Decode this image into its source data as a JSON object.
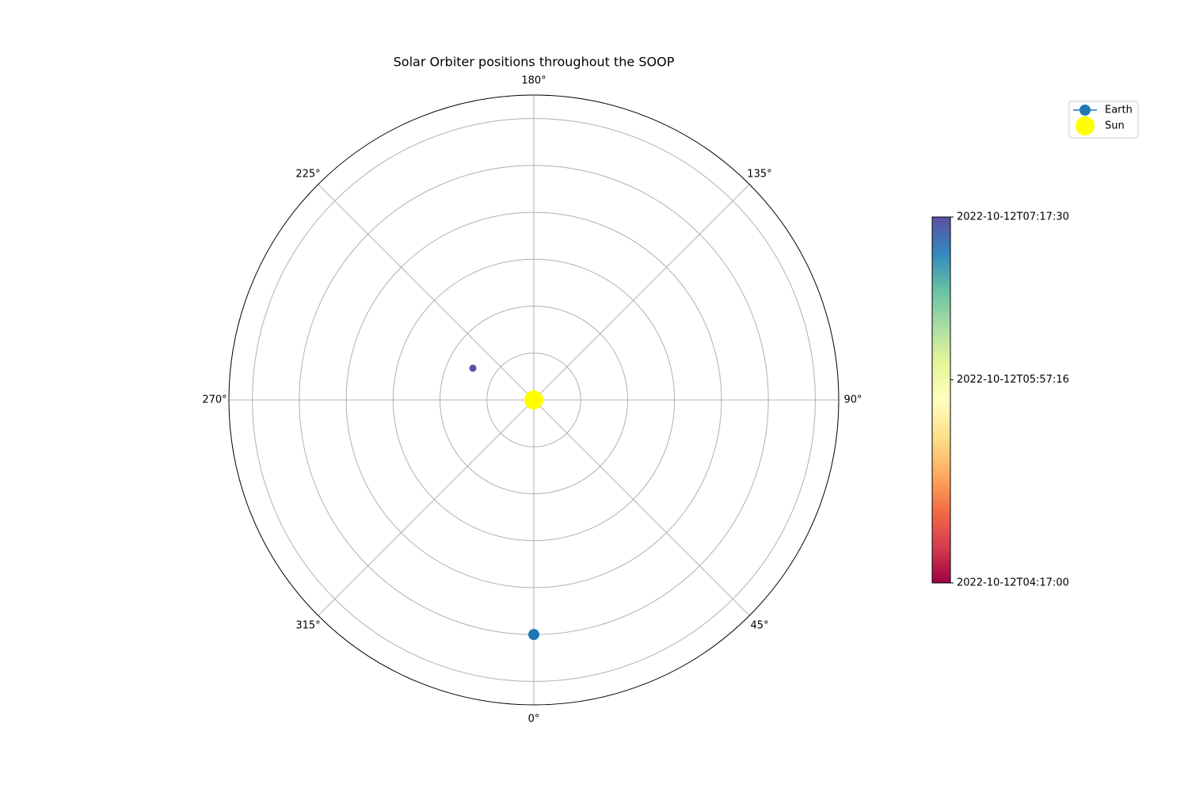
{
  "chart_data": {
    "type": "polar",
    "title": "Solar Orbiter positions throughout the SOOP",
    "theta_zero": "S",
    "theta_direction": "counterclockwise",
    "rlim": [
      0,
      1.3
    ],
    "rticks": [
      0.2,
      0.4,
      0.6,
      0.8,
      1.0,
      1.2
    ],
    "thetaticks": [
      {
        "value": 0,
        "label": "0°"
      },
      {
        "value": 45,
        "label": "45°"
      },
      {
        "value": 90,
        "label": "90°"
      },
      {
        "value": 135,
        "label": "135°"
      },
      {
        "value": 180,
        "label": "180°"
      },
      {
        "value": 225,
        "label": "225°"
      },
      {
        "value": 270,
        "label": "270°"
      },
      {
        "value": 315,
        "label": "315°"
      }
    ],
    "grid": true,
    "series": [
      {
        "name": "Earth",
        "color": "#1f77b4",
        "theta": [
          0
        ],
        "r": [
          1.0
        ]
      },
      {
        "name": "Sun",
        "color": "#ffff00",
        "theta": [
          0
        ],
        "r": [
          0
        ]
      }
    ],
    "scatter": {
      "theta": [
        242.5
      ],
      "r": [
        0.293
      ],
      "c": [
        "2022-10-12T07:17:30"
      ]
    },
    "colorbar": {
      "colormap": "Spectral",
      "clim": [
        "2022-10-12T04:17:00",
        "2022-10-12T07:17:30"
      ],
      "ticks": [
        "2022-10-12T04:17:00",
        "2022-10-12T05:57:16",
        "2022-10-12T07:17:30"
      ]
    },
    "legend": "upper right"
  }
}
